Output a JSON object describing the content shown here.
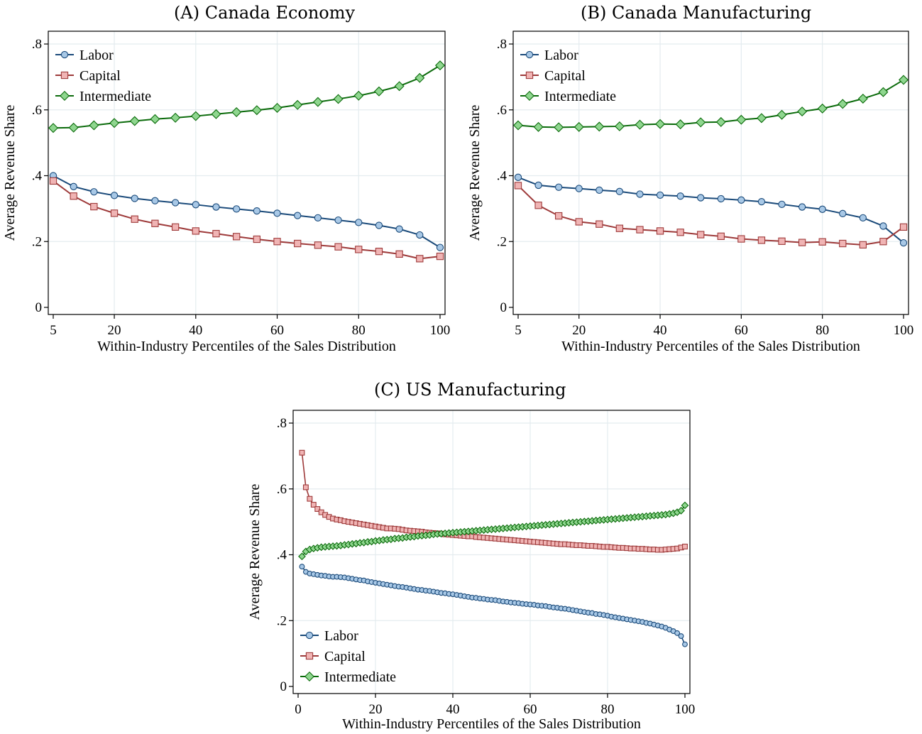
{
  "figure": {
    "panels": [
      {
        "label": "(A)",
        "title": "Canada Economy"
      },
      {
        "label": "(B)",
        "title": "Canada Manufacturing"
      },
      {
        "label": "(C)",
        "title": "US Manufacturing"
      }
    ]
  },
  "colors": {
    "labor_line": "#1a4a7a",
    "labor_fill": "#a8c8e6",
    "capital_line": "#9e3a3a",
    "capital_fill": "#f0b4b4",
    "intermediate_line": "#0b6b0b",
    "intermediate_fill": "#8fd68f",
    "grid": "#e4ecef"
  },
  "chart_data": [
    {
      "type": "line",
      "title": "Canada Economy",
      "xlabel": "Within-Industry Percentiles of the Sales Distribution",
      "ylabel": "Average Revenue Share",
      "xlim": [
        5,
        100
      ],
      "ylim": [
        0,
        0.8
      ],
      "xticks": [
        5,
        20,
        40,
        60,
        80,
        100
      ],
      "xtick_labels": [
        "5",
        "20",
        "40",
        "60",
        "80",
        "100"
      ],
      "yticks": [
        0,
        0.2,
        0.4,
        0.6,
        0.8
      ],
      "ytick_labels": [
        "0",
        ".2",
        ".4",
        ".6",
        ".8"
      ],
      "grid": true,
      "legend_position": "top-left",
      "x": [
        5,
        10,
        15,
        20,
        25,
        30,
        35,
        40,
        45,
        50,
        55,
        60,
        65,
        70,
        75,
        80,
        85,
        90,
        95,
        100
      ],
      "series": [
        {
          "name": "Labor",
          "values": [
            0.4,
            0.367,
            0.351,
            0.34,
            0.331,
            0.324,
            0.318,
            0.312,
            0.305,
            0.299,
            0.293,
            0.286,
            0.279,
            0.272,
            0.265,
            0.258,
            0.249,
            0.238,
            0.22,
            0.182
          ]
        },
        {
          "name": "Capital",
          "values": [
            0.384,
            0.338,
            0.306,
            0.286,
            0.268,
            0.255,
            0.244,
            0.232,
            0.224,
            0.215,
            0.207,
            0.2,
            0.194,
            0.189,
            0.184,
            0.176,
            0.17,
            0.162,
            0.148,
            0.155
          ]
        },
        {
          "name": "Intermediate",
          "values": [
            0.545,
            0.546,
            0.553,
            0.56,
            0.566,
            0.572,
            0.576,
            0.581,
            0.587,
            0.593,
            0.599,
            0.606,
            0.615,
            0.624,
            0.633,
            0.643,
            0.656,
            0.672,
            0.697,
            0.735
          ]
        }
      ]
    },
    {
      "type": "line",
      "title": "Canada Manufacturing",
      "xlabel": "Within-Industry Percentiles of the Sales Distribution",
      "ylabel": "Average Revenue Share",
      "xlim": [
        5,
        100
      ],
      "ylim": [
        0,
        0.8
      ],
      "xticks": [
        5,
        20,
        40,
        60,
        80,
        100
      ],
      "xtick_labels": [
        "5",
        "20",
        "40",
        "60",
        "80",
        "100"
      ],
      "yticks": [
        0,
        0.2,
        0.4,
        0.6,
        0.8
      ],
      "ytick_labels": [
        "0",
        ".2",
        ".4",
        ".6",
        ".8"
      ],
      "grid": true,
      "legend_position": "top-left",
      "x": [
        5,
        10,
        15,
        20,
        25,
        30,
        35,
        40,
        45,
        50,
        55,
        60,
        65,
        70,
        75,
        80,
        85,
        90,
        95,
        100
      ],
      "series": [
        {
          "name": "Labor",
          "values": [
            0.395,
            0.371,
            0.365,
            0.361,
            0.356,
            0.352,
            0.344,
            0.341,
            0.338,
            0.333,
            0.33,
            0.326,
            0.321,
            0.313,
            0.305,
            0.298,
            0.285,
            0.272,
            0.247,
            0.196
          ]
        },
        {
          "name": "Capital",
          "values": [
            0.37,
            0.31,
            0.278,
            0.26,
            0.253,
            0.24,
            0.236,
            0.232,
            0.228,
            0.221,
            0.216,
            0.208,
            0.204,
            0.201,
            0.197,
            0.199,
            0.194,
            0.19,
            0.2,
            0.244
          ]
        },
        {
          "name": "Intermediate",
          "values": [
            0.553,
            0.548,
            0.547,
            0.548,
            0.549,
            0.55,
            0.555,
            0.557,
            0.556,
            0.562,
            0.563,
            0.57,
            0.575,
            0.585,
            0.595,
            0.604,
            0.618,
            0.634,
            0.654,
            0.691
          ]
        }
      ]
    },
    {
      "type": "line",
      "title": "US Manufacturing",
      "xlabel": "Within-Industry Percentiles of the Sales Distribution",
      "ylabel": "Average Revenue Share",
      "xlim": [
        0,
        100
      ],
      "ylim": [
        0,
        0.8
      ],
      "xticks": [
        0,
        20,
        40,
        60,
        80,
        100
      ],
      "xtick_labels": [
        "0",
        "20",
        "40",
        "60",
        "80",
        "100"
      ],
      "yticks": [
        0,
        0.2,
        0.4,
        0.6,
        0.8
      ],
      "ytick_labels": [
        "0",
        ".2",
        ".4",
        ".6",
        ".8"
      ],
      "grid": true,
      "legend_position": "bottom-left",
      "x_range": [
        1,
        100
      ],
      "series": [
        {
          "name": "Labor",
          "values": [
            0.364,
            0.348,
            0.343,
            0.341,
            0.339,
            0.337,
            0.336,
            0.334,
            0.333,
            0.333,
            0.332,
            0.331,
            0.329,
            0.327,
            0.325,
            0.323,
            0.322,
            0.319,
            0.317,
            0.315,
            0.313,
            0.311,
            0.309,
            0.307,
            0.305,
            0.303,
            0.302,
            0.3,
            0.298,
            0.296,
            0.294,
            0.293,
            0.291,
            0.29,
            0.288,
            0.286,
            0.284,
            0.283,
            0.281,
            0.28,
            0.278,
            0.276,
            0.274,
            0.272,
            0.27,
            0.269,
            0.267,
            0.266,
            0.264,
            0.263,
            0.262,
            0.26,
            0.258,
            0.257,
            0.255,
            0.254,
            0.253,
            0.251,
            0.25,
            0.249,
            0.248,
            0.246,
            0.245,
            0.244,
            0.242,
            0.24,
            0.239,
            0.237,
            0.236,
            0.234,
            0.232,
            0.23,
            0.228,
            0.226,
            0.224,
            0.223,
            0.22,
            0.219,
            0.217,
            0.215,
            0.212,
            0.21,
            0.208,
            0.206,
            0.204,
            0.202,
            0.2,
            0.198,
            0.196,
            0.193,
            0.191,
            0.188,
            0.185,
            0.182,
            0.178,
            0.173,
            0.168,
            0.162,
            0.153,
            0.128
          ]
        },
        {
          "name": "Capital",
          "values": [
            0.71,
            0.605,
            0.57,
            0.552,
            0.539,
            0.529,
            0.521,
            0.515,
            0.51,
            0.507,
            0.505,
            0.502,
            0.5,
            0.498,
            0.496,
            0.494,
            0.492,
            0.49,
            0.488,
            0.486,
            0.484,
            0.482,
            0.48,
            0.48,
            0.479,
            0.478,
            0.476,
            0.474,
            0.473,
            0.472,
            0.471,
            0.47,
            0.468,
            0.467,
            0.466,
            0.465,
            0.464,
            0.462,
            0.461,
            0.46,
            0.459,
            0.458,
            0.457,
            0.456,
            0.456,
            0.454,
            0.453,
            0.452,
            0.451,
            0.45,
            0.449,
            0.448,
            0.447,
            0.446,
            0.445,
            0.444,
            0.443,
            0.442,
            0.441,
            0.44,
            0.439,
            0.438,
            0.437,
            0.436,
            0.435,
            0.434,
            0.433,
            0.432,
            0.432,
            0.431,
            0.43,
            0.429,
            0.429,
            0.428,
            0.427,
            0.427,
            0.426,
            0.425,
            0.424,
            0.424,
            0.423,
            0.422,
            0.421,
            0.421,
            0.42,
            0.419,
            0.419,
            0.418,
            0.418,
            0.417,
            0.416,
            0.416,
            0.415,
            0.415,
            0.416,
            0.417,
            0.418,
            0.419,
            0.422,
            0.425
          ]
        },
        {
          "name": "Intermediate",
          "values": [
            0.395,
            0.41,
            0.416,
            0.419,
            0.421,
            0.423,
            0.424,
            0.425,
            0.426,
            0.427,
            0.428,
            0.43,
            0.431,
            0.433,
            0.434,
            0.436,
            0.437,
            0.439,
            0.44,
            0.442,
            0.443,
            0.445,
            0.446,
            0.447,
            0.449,
            0.45,
            0.451,
            0.453,
            0.454,
            0.455,
            0.457,
            0.458,
            0.459,
            0.46,
            0.462,
            0.463,
            0.464,
            0.465,
            0.466,
            0.467,
            0.468,
            0.469,
            0.47,
            0.471,
            0.472,
            0.473,
            0.474,
            0.475,
            0.476,
            0.477,
            0.478,
            0.479,
            0.48,
            0.481,
            0.482,
            0.483,
            0.484,
            0.485,
            0.486,
            0.487,
            0.488,
            0.489,
            0.49,
            0.491,
            0.492,
            0.493,
            0.494,
            0.495,
            0.496,
            0.497,
            0.498,
            0.499,
            0.5,
            0.501,
            0.502,
            0.503,
            0.504,
            0.505,
            0.506,
            0.507,
            0.508,
            0.509,
            0.51,
            0.511,
            0.512,
            0.513,
            0.514,
            0.515,
            0.516,
            0.517,
            0.518,
            0.519,
            0.52,
            0.521,
            0.522,
            0.524,
            0.526,
            0.529,
            0.534,
            0.55
          ]
        }
      ]
    }
  ]
}
